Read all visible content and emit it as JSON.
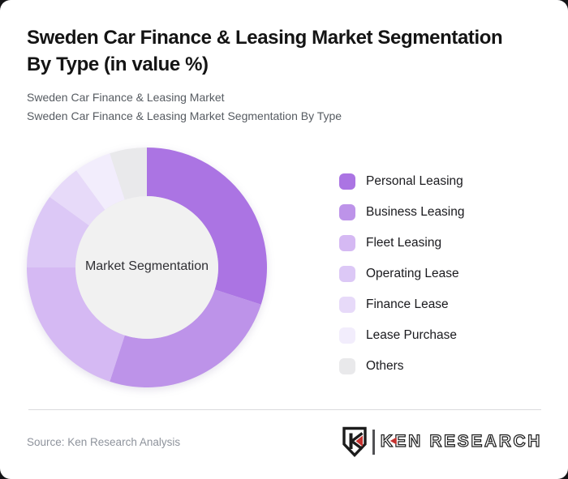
{
  "header": {
    "title_lines": [
      "Sweden Car Finance & Leasing Market Segmentation",
      "By Type (in value %)"
    ],
    "subtitle_lines": [
      "Sweden Car Finance & Leasing Market",
      "Sweden Car Finance & Leasing Market Segmentation By Type"
    ]
  },
  "chart_data": {
    "type": "pie",
    "variant": "donut",
    "title": "Sweden Car Finance & Leasing Market Segmentation By Type (in value %)",
    "center_label": "Market Segmentation",
    "categories": [
      "Personal Leasing",
      "Business Leasing",
      "Fleet Leasing",
      "Operating Lease",
      "Finance Lease",
      "Lease Purchase",
      "Others"
    ],
    "values": [
      30,
      25,
      20,
      10,
      5,
      5,
      5
    ],
    "unit": "% of value (estimated from arc angles; no numeric labels shown)",
    "colors": [
      "#ab74e3",
      "#bd93e9",
      "#d5b9f3",
      "#dcc8f6",
      "#e7daf9",
      "#f2edfc",
      "#e9e9eb"
    ],
    "inner_circle_color": "#f1f1f1",
    "start_angle_deg": 0,
    "direction": "clockwise",
    "legend_position": "right"
  },
  "footer": {
    "source": "Source: Ken Research Analysis",
    "brand": {
      "shield_letter": "K",
      "name": "KEN RESEARCH",
      "accent_color": "#c5322f"
    }
  }
}
